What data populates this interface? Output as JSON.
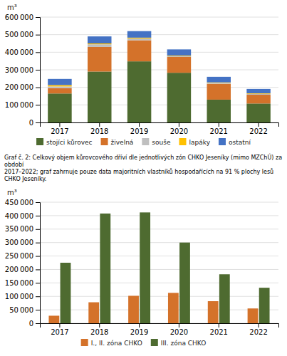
{
  "chart_data": [
    {
      "type": "bar",
      "stacked": true,
      "categories": [
        "2017",
        "2018",
        "2019",
        "2020",
        "2021",
        "2022"
      ],
      "series": [
        {
          "name": "stojíci kůrovec",
          "color": "#4e6b30",
          "values": [
            165000,
            290000,
            348000,
            283000,
            130000,
            108000
          ]
        },
        {
          "name": "živelná",
          "color": "#d4722a",
          "values": [
            30000,
            140000,
            120000,
            90000,
            90000,
            50000
          ]
        },
        {
          "name": "souše",
          "color": "#bfbfbf",
          "values": [
            10000,
            15000,
            10000,
            5000,
            5000,
            5000
          ]
        },
        {
          "name": "lapáky",
          "color": "#ffc000",
          "values": [
            8000,
            5000,
            5000,
            3000,
            3000,
            3000
          ]
        },
        {
          "name": "ostatní",
          "color": "#4472c4",
          "values": [
            35000,
            40000,
            37000,
            35000,
            32000,
            25000
          ]
        }
      ],
      "ylabel": "m³",
      "ylim": [
        0,
        600000
      ],
      "yticks": [
        0,
        {
          "value": 100000,
          "label": "100 000"
        },
        {
          "value": 200000,
          "label": "200 000"
        },
        {
          "value": 300000,
          "label": "300 000"
        },
        {
          "value": 400000,
          "label": "400 000"
        },
        {
          "value": 500000,
          "label": "500 000"
        },
        {
          "value": 600000,
          "label": "600 000"
        }
      ],
      "grid": true,
      "legend": "bottom"
    },
    {
      "type": "bar",
      "title": "Graf č. 2: Celkový objem kůrovcového dříví dle jednotlivých zón CHKO Jeseníky (mimo MZChÚ) za období\n2017–2022; graf zahrnuje pouze data majoritních vlastníků hospodařících na 91 % plochy lesů CHKO Jeseníky.",
      "categories": [
        "2017",
        "2018",
        "2019",
        "2020",
        "2021",
        "2022"
      ],
      "series": [
        {
          "name": "I., II. zóna CHKO",
          "color": "#d4722a",
          "values": [
            28000,
            78000,
            102000,
            113000,
            82000,
            55000
          ]
        },
        {
          "name": "III. zóna CHKO",
          "color": "#4e6b30",
          "values": [
            225000,
            408000,
            412000,
            300000,
            182000,
            132000
          ]
        }
      ],
      "ylabel": "m³",
      "ylim": [
        0,
        450000
      ],
      "yticks": [
        0,
        {
          "value": 50000,
          "label": "50 000"
        },
        {
          "value": 100000,
          "label": "100 000"
        },
        {
          "value": 150000,
          "label": "150 000"
        },
        {
          "value": 200000,
          "label": "200 000"
        },
        {
          "value": 250000,
          "label": "250 000"
        },
        {
          "value": 300000,
          "label": "300 000"
        },
        {
          "value": 350000,
          "label": "350 000"
        },
        {
          "value": 400000,
          "label": "400 000"
        },
        {
          "value": 450000,
          "label": "450 000"
        }
      ],
      "grid": true,
      "legend": "bottom"
    }
  ]
}
